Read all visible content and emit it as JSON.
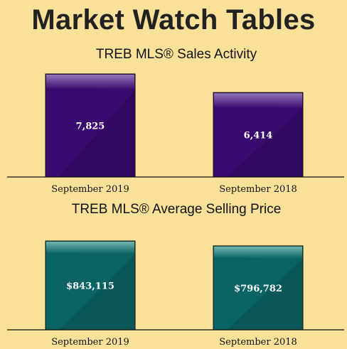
{
  "page": {
    "title": "Market Watch Tables"
  },
  "chart_data": [
    {
      "type": "bar",
      "title": "TREB MLS® Sales Activity",
      "categories": [
        "September 2019",
        "September 2018"
      ],
      "values": [
        7825,
        6414
      ],
      "value_labels": [
        "7,825",
        "6,414"
      ],
      "color": "#3a0b6e",
      "highlight": "#9a80c0"
    },
    {
      "type": "bar",
      "title": "TREB MLS® Average Selling Price",
      "categories": [
        "September 2019",
        "September 2018"
      ],
      "values": [
        843115,
        796782
      ],
      "value_labels": [
        "$843,115",
        "$796,782"
      ],
      "color": "#0b6464",
      "highlight": "#7cc0b8"
    }
  ]
}
